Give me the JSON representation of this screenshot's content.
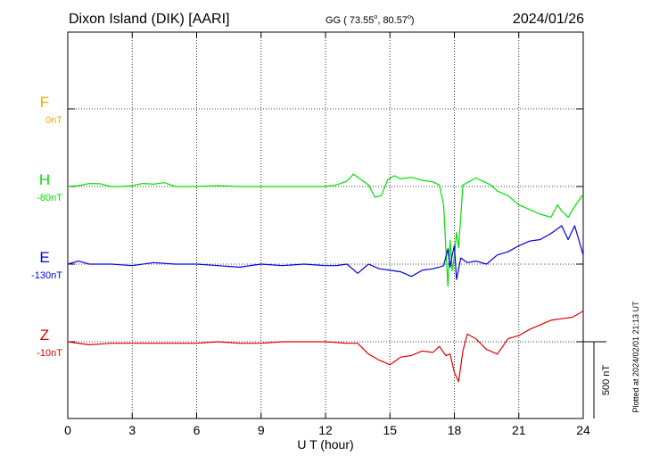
{
  "header": {
    "station": "Dixon Island (DIK)  [AARI]",
    "gg_prefix": "GG ( 73.55",
    "gg_sep": ",  80.57",
    "gg_suffix": ")",
    "date": "2024/01/26"
  },
  "footer": {
    "xlabel": "U T (hour)",
    "plotted": "Plotted at 2024/02/01 21:13 UT",
    "scale_label": "500 nT"
  },
  "chart_data": {
    "type": "line",
    "xlabel": "U T (hour)",
    "xlim": [
      0,
      24
    ],
    "x_ticks": [
      0,
      3,
      6,
      9,
      12,
      15,
      18,
      21,
      24
    ],
    "x_tick_labels": [
      "0",
      "3",
      "6",
      "9",
      "12",
      "15",
      "18",
      "21",
      "24"
    ],
    "scale_bar_nT": 500,
    "series": [
      {
        "name": "F",
        "baseline_label": "0nT",
        "color": "#f5a800",
        "x": [],
        "y": []
      },
      {
        "name": "H",
        "baseline_label": "-80nT",
        "color": "#00e000",
        "x": [
          0,
          0.5,
          1,
          1.5,
          2,
          2.5,
          3,
          3.5,
          4,
          4.5,
          5,
          6,
          7,
          8,
          9,
          10,
          11,
          12,
          12.5,
          13,
          13.3,
          13.6,
          14,
          14.3,
          14.6,
          14.9,
          15.2,
          15.5,
          16,
          16.5,
          17,
          17.3,
          17.5,
          17.6,
          17.7,
          17.8,
          17.9,
          18,
          18.1,
          18.2,
          18.4,
          18.6,
          19,
          19.4,
          19.7,
          20,
          20.5,
          21,
          21.5,
          22,
          22.5,
          22.8,
          23,
          23.3,
          23.6,
          24
        ],
        "y": [
          0,
          5,
          20,
          18,
          0,
          0,
          5,
          20,
          15,
          25,
          0,
          0,
          5,
          0,
          0,
          0,
          0,
          0,
          10,
          35,
          80,
          50,
          10,
          -70,
          -60,
          45,
          70,
          50,
          60,
          40,
          30,
          10,
          -120,
          -400,
          -650,
          -350,
          -550,
          -450,
          -300,
          -400,
          10,
          25,
          55,
          30,
          10,
          -30,
          -60,
          -120,
          -150,
          -180,
          -200,
          -120,
          -160,
          -200,
          -130,
          -50
        ]
      },
      {
        "name": "E",
        "baseline_label": "-130nT",
        "color": "#0000e0",
        "x": [
          0,
          0.5,
          1,
          2,
          3,
          4,
          5,
          6,
          7,
          8,
          9,
          10,
          11,
          12,
          12.5,
          13,
          13.5,
          14,
          14.5,
          15,
          15.5,
          16,
          16.5,
          17,
          17.3,
          17.5,
          17.7,
          17.8,
          17.9,
          18,
          18.1,
          18.3,
          18.6,
          19,
          19.5,
          20,
          20.5,
          21,
          21.5,
          22,
          22.5,
          23,
          23.3,
          23.6,
          24
        ],
        "y": [
          0,
          20,
          0,
          0,
          -10,
          10,
          0,
          0,
          -10,
          -20,
          0,
          -10,
          0,
          -10,
          -10,
          0,
          -60,
          0,
          -30,
          -40,
          -50,
          -80,
          -40,
          -30,
          -20,
          -10,
          100,
          -20,
          60,
          120,
          -100,
          40,
          10,
          20,
          0,
          60,
          80,
          120,
          150,
          160,
          200,
          250,
          160,
          250,
          60
        ]
      },
      {
        "name": "Z",
        "baseline_label": "-10nT",
        "color": "#e00000",
        "x": [
          0,
          1,
          2,
          3,
          4,
          5,
          6,
          7,
          8,
          9,
          10,
          11,
          12,
          13,
          13.5,
          14,
          14.5,
          15,
          15.5,
          16,
          16.5,
          17,
          17.3,
          17.6,
          17.8,
          18,
          18.2,
          18.4,
          18.6,
          19,
          19.5,
          20,
          20.5,
          21,
          21.5,
          22,
          22.5,
          23,
          23.5,
          24
        ],
        "y": [
          0,
          -20,
          -10,
          -10,
          -10,
          -10,
          -10,
          0,
          -10,
          -10,
          0,
          0,
          0,
          -10,
          -10,
          -80,
          -120,
          -150,
          -100,
          -90,
          -60,
          -70,
          -30,
          -90,
          -80,
          -200,
          -260,
          -60,
          50,
          20,
          -50,
          -80,
          20,
          40,
          80,
          110,
          140,
          150,
          160,
          200
        ]
      }
    ]
  }
}
